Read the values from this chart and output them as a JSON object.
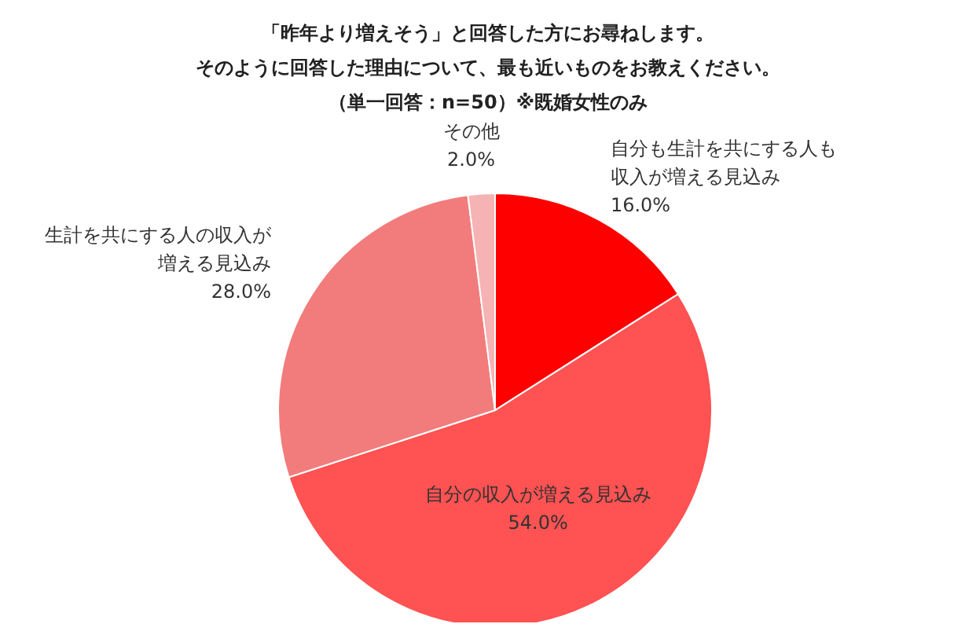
{
  "chart_data": {
    "type": "pie",
    "title": "「昨年より増えそう」と回答した方にお尋ねします。",
    "subtitle": "そのように回答した理由について、最も近いものをお教えください。",
    "annotations": [
      "（単一回答：n=50）※既婚女性のみ"
    ],
    "categories": [
      "自分も生計を共にする人も収入が増える見込み",
      "自分の収入が増える見込み",
      "生計を共にする人の収入が増える見込み",
      "その他"
    ],
    "values": [
      16.0,
      54.0,
      28.0,
      2.0
    ],
    "value_labels": [
      "16.0%",
      "54.0%",
      "28.0%",
      "2.0%"
    ],
    "colors": [
      "#ff0000",
      "#ff5252",
      "#f27c7c",
      "#f5b3b3"
    ]
  }
}
